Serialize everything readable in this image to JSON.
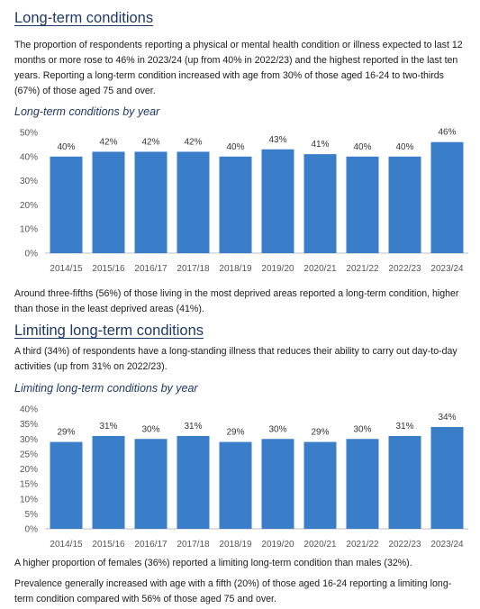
{
  "colors": {
    "heading": "#1f3864",
    "bar": "#3a7dc9",
    "axis_text": "#555555",
    "axis_line": "#bfbfbf"
  },
  "section1": {
    "title": "Long-term conditions",
    "para1": "The proportion of respondents reporting a physical or mental health condition or illness expected to last 12 months or more rose to 46% in 2023/24 (up from 40% in 2022/23) and the highest reported in the last ten years.  Reporting a long-term condition increased with age from 30% of those aged 16-24 to two-thirds (67%) of those aged 75 and over.",
    "chart_title": "Long-term conditions by year",
    "para2": "Around three-fifths (56%) of those living in the most deprived areas reported a long-term condition, higher than those in the least deprived areas (41%)."
  },
  "section2": {
    "title": "Limiting long-term conditions",
    "para1": "A third (34%) of respondents have a long-standing illness that reduces their ability to carry out day-to-day activities (up from 31% on 2022/23).",
    "chart_title": "Limiting long-term conditions by year",
    "para2": "A higher proportion of females (36%) reported a limiting long-term condition than males (32%).",
    "para3": "Prevalence generally increased with age with a fifth (20%) of those aged 16-24 reporting a limiting long-term condition compared with 56% of those aged 75 and over."
  },
  "chart_data": [
    {
      "type": "bar",
      "title": "Long-term conditions by year",
      "categories": [
        "2014/15",
        "2015/16",
        "2016/17",
        "2017/18",
        "2018/19",
        "2019/20",
        "2020/21",
        "2021/22",
        "2022/23",
        "2023/24"
      ],
      "values": [
        40,
        42,
        42,
        42,
        40,
        43,
        41,
        40,
        40,
        46
      ],
      "data_labels": [
        "40%",
        "42%",
        "42%",
        "42%",
        "40%",
        "43%",
        "41%",
        "40%",
        "40%",
        "46%"
      ],
      "ylim": [
        0,
        50
      ],
      "yticks": [
        0,
        10,
        20,
        30,
        40,
        50
      ],
      "ytick_labels": [
        "0%",
        "10%",
        "20%",
        "30%",
        "40%",
        "50%"
      ],
      "grid": false
    },
    {
      "type": "bar",
      "title": "Limiting long-term conditions by year",
      "categories": [
        "2014/15",
        "2015/16",
        "2016/17",
        "2017/18",
        "2018/19",
        "2019/20",
        "2020/21",
        "2021/22",
        "2022/23",
        "2023/24"
      ],
      "values": [
        29,
        31,
        30,
        31,
        29,
        30,
        29,
        30,
        31,
        34
      ],
      "data_labels": [
        "29%",
        "31%",
        "30%",
        "31%",
        "29%",
        "30%",
        "29%",
        "30%",
        "31%",
        "34%"
      ],
      "ylim": [
        0,
        40
      ],
      "yticks": [
        0,
        5,
        10,
        15,
        20,
        25,
        30,
        35,
        40
      ],
      "ytick_labels": [
        "0%",
        "5%",
        "10%",
        "15%",
        "20%",
        "25%",
        "30%",
        "35%",
        "40%"
      ],
      "grid": false
    }
  ]
}
